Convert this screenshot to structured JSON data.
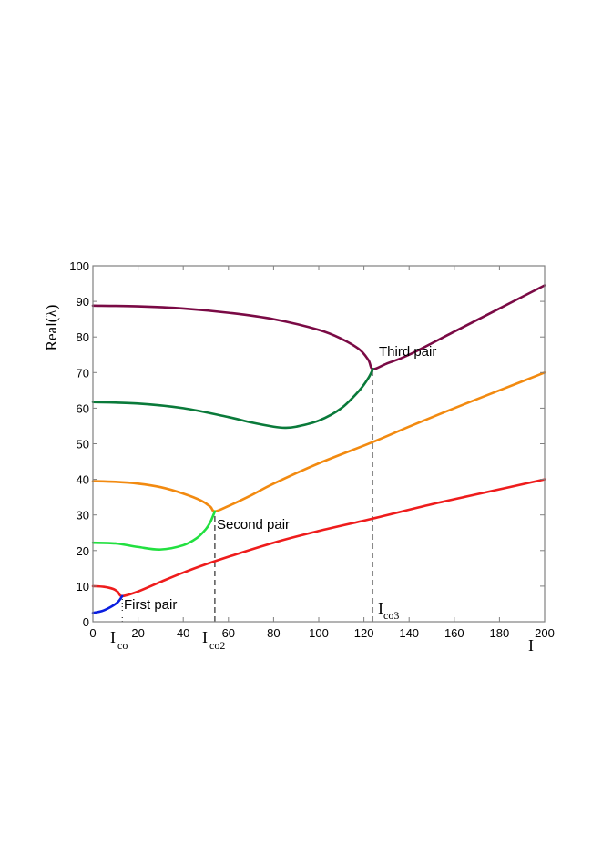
{
  "chart_data": {
    "type": "line",
    "title": "",
    "xlabel": "I",
    "ylabel": "Real(λ)",
    "xlim": [
      0,
      200
    ],
    "ylim": [
      0,
      100
    ],
    "grid": false,
    "legend": null,
    "xticks": [
      0,
      20,
      40,
      60,
      80,
      100,
      120,
      140,
      160,
      180,
      200
    ],
    "yticks": [
      0,
      10,
      20,
      30,
      40,
      50,
      60,
      70,
      80,
      90,
      100
    ],
    "series": [
      {
        "name": "purple (upper third pair)",
        "color": "#7a0a45",
        "x": [
          0,
          20,
          40,
          60,
          80,
          100,
          110,
          118,
          122,
          124,
          130,
          140,
          160,
          180,
          200
        ],
        "y": [
          88.8,
          88.6,
          88.0,
          86.8,
          85.0,
          82.0,
          79.5,
          76.5,
          73.5,
          71.0,
          72.5,
          75.0,
          81.5,
          88.0,
          94.5
        ]
      },
      {
        "name": "dark green (lower third pair)",
        "color": "#0a7a3a",
        "x": [
          0,
          20,
          40,
          60,
          70,
          80,
          85,
          90,
          100,
          110,
          118,
          122,
          124
        ],
        "y": [
          61.7,
          61.3,
          60.0,
          57.5,
          56.0,
          54.8,
          54.5,
          54.8,
          56.5,
          60.0,
          65.0,
          68.5,
          71.0
        ]
      },
      {
        "name": "orange (upper second pair)",
        "color": "#f28a10",
        "x": [
          0,
          10,
          20,
          30,
          40,
          48,
          52,
          54,
          60,
          70,
          80,
          100,
          124,
          140,
          160,
          180,
          200
        ],
        "y": [
          39.5,
          39.3,
          38.8,
          37.8,
          36.0,
          34.0,
          32.3,
          31.0,
          32.5,
          35.5,
          38.8,
          44.5,
          50.5,
          54.8,
          60.0,
          65.0,
          70.0
        ]
      },
      {
        "name": "light green (lower second pair)",
        "color": "#22e040",
        "x": [
          0,
          10,
          20,
          30,
          40,
          46,
          50,
          52,
          54
        ],
        "y": [
          22.2,
          22.0,
          21.0,
          20.3,
          21.5,
          23.5,
          26.0,
          28.0,
          31.0
        ]
      },
      {
        "name": "red (upper first pair)",
        "color": "#ee1c1c",
        "x": [
          0,
          5,
          9,
          11,
          13,
          20,
          30,
          40,
          54,
          80,
          100,
          124,
          150,
          175,
          200
        ],
        "y": [
          10.0,
          9.8,
          9.2,
          8.4,
          7.2,
          8.5,
          11.2,
          13.8,
          17.0,
          22.2,
          25.5,
          29.0,
          33.0,
          36.5,
          40.0
        ]
      },
      {
        "name": "blue (lower first pair)",
        "color": "#0a1ee0",
        "x": [
          0,
          4,
          8,
          11,
          13
        ],
        "y": [
          2.5,
          3.0,
          4.2,
          5.5,
          7.2
        ]
      }
    ],
    "vlines": [
      {
        "x": 13,
        "style": "dotted",
        "label": "I_co",
        "ymax": 7.2
      },
      {
        "x": 54,
        "style": "dashed",
        "label": "I_co2",
        "ymax": 31.0,
        "color": "#000000"
      },
      {
        "x": 124,
        "style": "dashed",
        "label": "I_co3",
        "ymax": 71.0,
        "color": "#888888"
      }
    ],
    "annotations": [
      {
        "text": "First pair",
        "x": 14,
        "y": 3.5
      },
      {
        "text": "Second pair",
        "x": 55,
        "y": 26.5
      },
      {
        "text": "Third pair",
        "x": 126,
        "y": 66.5
      }
    ]
  },
  "labels": {
    "ylabel": "Real(λ)",
    "xlabel": "I",
    "ico_main": "I",
    "ico_sub": "co",
    "ico2_main": "I",
    "ico2_sub": "co2",
    "ico3_main": "I",
    "ico3_sub": "co3",
    "first_pair": "First pair",
    "second_pair": "Second pair",
    "third_pair": "Third pair"
  }
}
